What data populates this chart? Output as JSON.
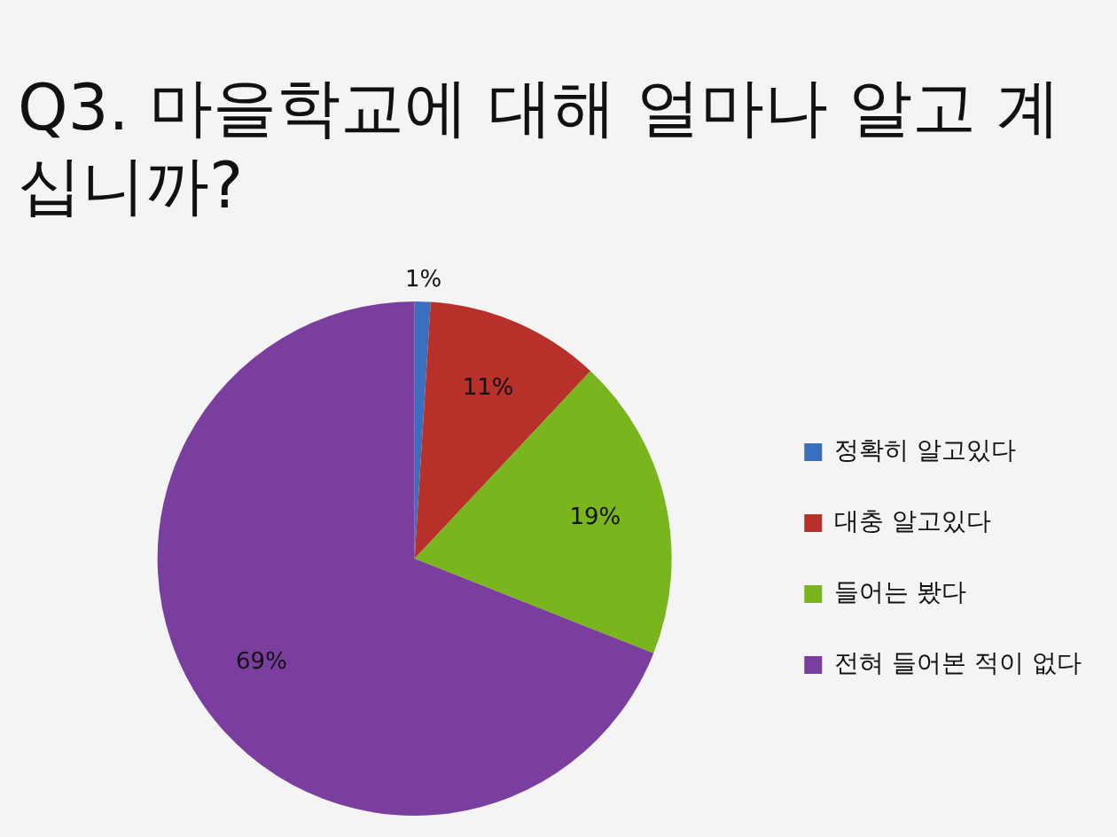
{
  "chart_data": {
    "type": "pie",
    "title": "Q3. 마을학교에 대해 얼마나 알고 계십니까?",
    "categories": [
      "정확히 알고있다",
      "대충 알고있다",
      "들어는 봤다",
      "전혀 들어본 적이 없다"
    ],
    "values": [
      1,
      11,
      19,
      69
    ],
    "colors": [
      "#3a6fc0",
      "#b8302a",
      "#7ab51d",
      "#7a3f9e"
    ],
    "value_labels": [
      "1%",
      "11%",
      "19%",
      "69%"
    ],
    "legend": "right"
  }
}
